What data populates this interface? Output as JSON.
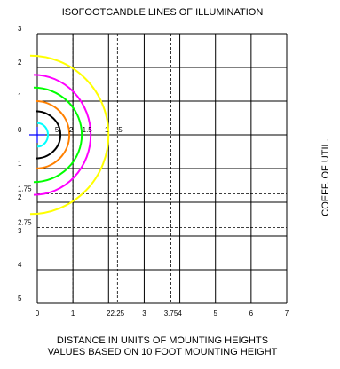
{
  "chart_data": {
    "type": "line",
    "title": "ISOFOOTCANDLE LINES OF ILLUMINATION",
    "xlabel": "DISTANCE IN UNITS OF MOUNTING HEIGHTS",
    "subtitle": "VALUES BASED ON 10 FOOT MOUNTING HEIGHT",
    "side_label": "COEFF. OF UTIL.",
    "xlim": [
      0,
      7
    ],
    "ylim": [
      -5,
      3
    ],
    "grid": true,
    "x_ticks": [
      {
        "value": 0,
        "label": "0"
      },
      {
        "value": 1,
        "label": "1"
      },
      {
        "value": 2,
        "label": "2"
      },
      {
        "value": 2.25,
        "label": "2.25"
      },
      {
        "value": 3,
        "label": "3"
      },
      {
        "value": 3.75,
        "label": "3.75"
      },
      {
        "value": 4,
        "label": "4"
      },
      {
        "value": 5,
        "label": "5"
      },
      {
        "value": 6,
        "label": "6"
      },
      {
        "value": 7,
        "label": "7"
      }
    ],
    "y_ticks": [
      {
        "value": 3,
        "label": "3"
      },
      {
        "value": 2,
        "label": "2"
      },
      {
        "value": 1,
        "label": "1"
      },
      {
        "value": 0,
        "label": "0"
      },
      {
        "value": -1,
        "label": "1"
      },
      {
        "value": -1.75,
        "label": "1.75"
      },
      {
        "value": -2,
        "label": "2"
      },
      {
        "value": -2.75,
        "label": "2.75"
      },
      {
        "value": -3,
        "label": "3"
      },
      {
        "value": -4,
        "label": "4"
      },
      {
        "value": -5,
        "label": "5"
      }
    ],
    "dashed_x": [
      1,
      2.25,
      3.75
    ],
    "dashed_y": [
      1,
      -1.75,
      -2.75
    ],
    "luminaire": {
      "x": 0,
      "y": 0
    },
    "isolines": [
      {
        "label": ".5",
        "color": "#ffff00",
        "cx": -0.2,
        "rx": 2.2,
        "ry": 2.35,
        "label_x": 2.3
      },
      {
        "label": "1",
        "color": "#ff00ff",
        "cx": -0.1,
        "rx": 1.6,
        "ry": 1.78,
        "label_x": 1.95
      },
      {
        "label": "1.5",
        "color": "#00ff00",
        "cx": -0.1,
        "rx": 1.35,
        "ry": 1.4,
        "label_x": 1.4
      },
      {
        "label": "2",
        "color": "#ff8000",
        "cx": -0.05,
        "rx": 0.95,
        "ry": 1.0,
        "label_x": 0.95
      },
      {
        "label": "5",
        "color": "#000000",
        "cx": -0.05,
        "rx": 0.7,
        "ry": 0.7,
        "label_x": 0.55
      },
      {
        "label": "",
        "color": "#00ffff",
        "cx": 0,
        "rx": 0.3,
        "ry": 0.35,
        "label_x": null
      }
    ]
  }
}
